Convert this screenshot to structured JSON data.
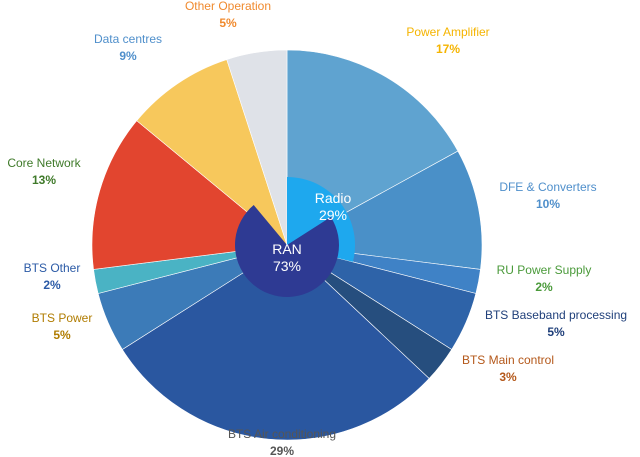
{
  "chart_data": {
    "type": "pie",
    "slices": [
      {
        "label": "Power Amplifier",
        "value": 17,
        "value_label": "17%",
        "color": "#5fa3d0",
        "label_color": "#f5b400"
      },
      {
        "label": "DFE & Converters",
        "value": 10,
        "value_label": "10%",
        "color": "#4a90c8",
        "label_color": "#4f8fcb"
      },
      {
        "label": "RU Power Supply",
        "value": 2,
        "value_label": "2%",
        "color": "#3f82c6",
        "label_color": "#4a9a3a"
      },
      {
        "label": "BTS Baseband processing",
        "value": 5,
        "value_label": "5%",
        "color": "#2e63a8",
        "label_color": "#1f3f7a"
      },
      {
        "label": "BTS Main control",
        "value": 3,
        "value_label": "3%",
        "color": "#264e7e",
        "label_color": "#b4581a"
      },
      {
        "label": "BTS Air conditioning",
        "value": 29,
        "value_label": "29%",
        "color": "#2a57a0",
        "label_color": "#555555"
      },
      {
        "label": "BTS Power",
        "value": 5,
        "value_label": "5%",
        "color": "#3c7bb8",
        "label_color": "#b07c00"
      },
      {
        "label": "BTS Other",
        "value": 2,
        "value_label": "2%",
        "color": "#4ab3c4",
        "label_color": "#2b5aa6"
      },
      {
        "label": "Core Network",
        "value": 13,
        "value_label": "13%",
        "color": "#e2452f",
        "label_color": "#3f7a2a"
      },
      {
        "label": "Data centres",
        "value": 9,
        "value_label": "9%",
        "color": "#f7c85c",
        "label_color": "#4f8fcb"
      },
      {
        "label": "Other Operation",
        "value": 5,
        "value_label": "5%",
        "color": "#dfe2e8",
        "label_color": "#f08a2e"
      }
    ],
    "inner_rings": [
      {
        "label": "Radio",
        "value_label": "29%",
        "value": 29,
        "color": "#1ea8ee"
      },
      {
        "label": "RAN",
        "value_label": "73%",
        "value": 73,
        "color": "#2e3a93"
      }
    ]
  }
}
